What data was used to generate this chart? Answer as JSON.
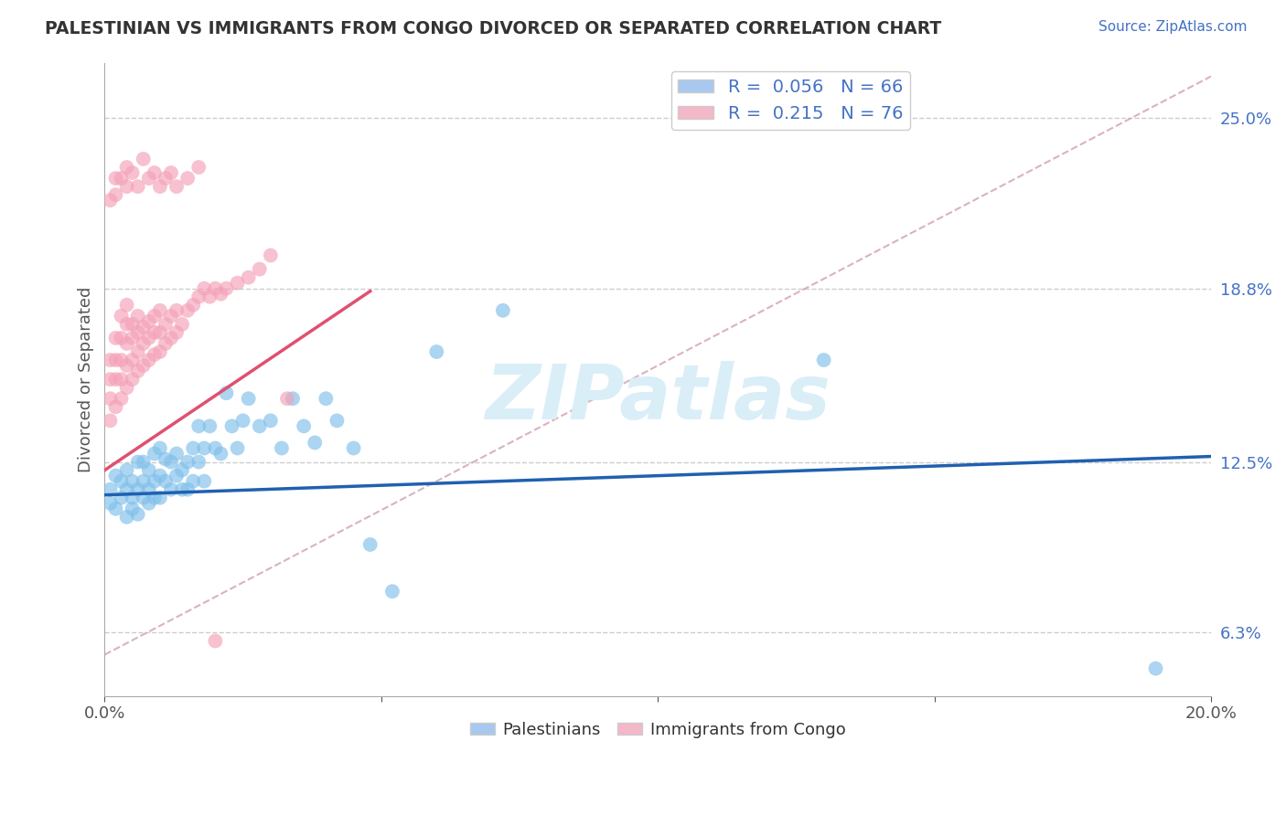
{
  "title": "PALESTINIAN VS IMMIGRANTS FROM CONGO DIVORCED OR SEPARATED CORRELATION CHART",
  "source_text": "Source: ZipAtlas.com",
  "ylabel": "Divorced or Separated",
  "xlim": [
    0.0,
    0.2
  ],
  "ylim": [
    0.04,
    0.27
  ],
  "xticks": [
    0.0,
    0.05,
    0.1,
    0.15,
    0.2
  ],
  "xticklabels": [
    "0.0%",
    "",
    "",
    "",
    "20.0%"
  ],
  "ytick_right_labels": [
    "25.0%",
    "18.8%",
    "12.5%",
    "6.3%"
  ],
  "ytick_right_values": [
    0.25,
    0.188,
    0.125,
    0.063
  ],
  "bottom_legend": [
    "Palestinians",
    "Immigrants from Congo"
  ],
  "blue_color": "#7fbfea",
  "pink_color": "#f4a0b8",
  "blue_line_color": "#2060b0",
  "pink_line_color": "#e05070",
  "diagonal_color": "#d0a0b0",
  "watermark_text": "ZIPatlas",
  "watermark_color": "#daeef8",
  "blue_line_x0": 0.0,
  "blue_line_x1": 0.2,
  "blue_line_y0": 0.113,
  "blue_line_y1": 0.127,
  "pink_line_x0": 0.0,
  "pink_line_x1": 0.048,
  "pink_line_y0": 0.122,
  "pink_line_y1": 0.187,
  "blue_scatter_x": [
    0.001,
    0.001,
    0.002,
    0.002,
    0.003,
    0.003,
    0.004,
    0.004,
    0.004,
    0.005,
    0.005,
    0.005,
    0.006,
    0.006,
    0.006,
    0.007,
    0.007,
    0.007,
    0.008,
    0.008,
    0.008,
    0.009,
    0.009,
    0.009,
    0.01,
    0.01,
    0.01,
    0.011,
    0.011,
    0.012,
    0.012,
    0.013,
    0.013,
    0.014,
    0.014,
    0.015,
    0.015,
    0.016,
    0.016,
    0.017,
    0.017,
    0.018,
    0.018,
    0.019,
    0.02,
    0.021,
    0.022,
    0.023,
    0.024,
    0.025,
    0.026,
    0.028,
    0.03,
    0.032,
    0.034,
    0.036,
    0.038,
    0.04,
    0.042,
    0.045,
    0.048,
    0.052,
    0.06,
    0.072,
    0.13,
    0.19
  ],
  "blue_scatter_y": [
    0.115,
    0.11,
    0.12,
    0.108,
    0.118,
    0.112,
    0.115,
    0.105,
    0.122,
    0.112,
    0.118,
    0.108,
    0.115,
    0.125,
    0.106,
    0.118,
    0.112,
    0.125,
    0.115,
    0.122,
    0.11,
    0.118,
    0.128,
    0.112,
    0.12,
    0.112,
    0.13,
    0.118,
    0.126,
    0.115,
    0.125,
    0.12,
    0.128,
    0.115,
    0.122,
    0.125,
    0.115,
    0.13,
    0.118,
    0.125,
    0.138,
    0.13,
    0.118,
    0.138,
    0.13,
    0.128,
    0.15,
    0.138,
    0.13,
    0.14,
    0.148,
    0.138,
    0.14,
    0.13,
    0.148,
    0.138,
    0.132,
    0.148,
    0.14,
    0.13,
    0.095,
    0.078,
    0.165,
    0.18,
    0.162,
    0.05
  ],
  "pink_scatter_x": [
    0.001,
    0.001,
    0.001,
    0.001,
    0.002,
    0.002,
    0.002,
    0.002,
    0.003,
    0.003,
    0.003,
    0.003,
    0.003,
    0.004,
    0.004,
    0.004,
    0.004,
    0.004,
    0.005,
    0.005,
    0.005,
    0.005,
    0.006,
    0.006,
    0.006,
    0.006,
    0.007,
    0.007,
    0.007,
    0.008,
    0.008,
    0.008,
    0.009,
    0.009,
    0.009,
    0.01,
    0.01,
    0.01,
    0.011,
    0.011,
    0.012,
    0.012,
    0.013,
    0.013,
    0.014,
    0.015,
    0.016,
    0.017,
    0.018,
    0.019,
    0.02,
    0.021,
    0.022,
    0.024,
    0.026,
    0.028,
    0.03,
    0.033,
    0.001,
    0.002,
    0.002,
    0.003,
    0.004,
    0.004,
    0.005,
    0.006,
    0.007,
    0.008,
    0.009,
    0.01,
    0.011,
    0.012,
    0.013,
    0.015,
    0.017,
    0.02
  ],
  "pink_scatter_y": [
    0.148,
    0.14,
    0.155,
    0.162,
    0.145,
    0.155,
    0.162,
    0.17,
    0.148,
    0.155,
    0.162,
    0.17,
    0.178,
    0.152,
    0.16,
    0.168,
    0.175,
    0.182,
    0.155,
    0.162,
    0.17,
    0.175,
    0.158,
    0.165,
    0.172,
    0.178,
    0.16,
    0.168,
    0.174,
    0.162,
    0.17,
    0.176,
    0.164,
    0.172,
    0.178,
    0.165,
    0.172,
    0.18,
    0.168,
    0.175,
    0.17,
    0.178,
    0.172,
    0.18,
    0.175,
    0.18,
    0.182,
    0.185,
    0.188,
    0.185,
    0.188,
    0.186,
    0.188,
    0.19,
    0.192,
    0.195,
    0.2,
    0.148,
    0.22,
    0.228,
    0.222,
    0.228,
    0.232,
    0.225,
    0.23,
    0.225,
    0.235,
    0.228,
    0.23,
    0.225,
    0.228,
    0.23,
    0.225,
    0.228,
    0.232,
    0.06
  ]
}
